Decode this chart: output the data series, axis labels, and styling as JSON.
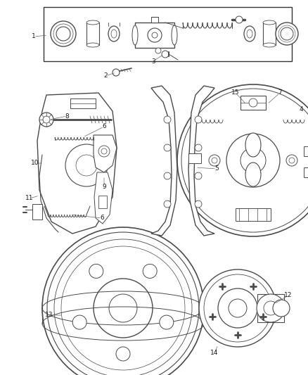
{
  "bg_color": "#ffffff",
  "line_color": "#4a4a4a",
  "label_color": "#1a1a1a",
  "label_fontsize": 6.5,
  "fig_width": 4.38,
  "fig_height": 5.33,
  "dpi": 100
}
